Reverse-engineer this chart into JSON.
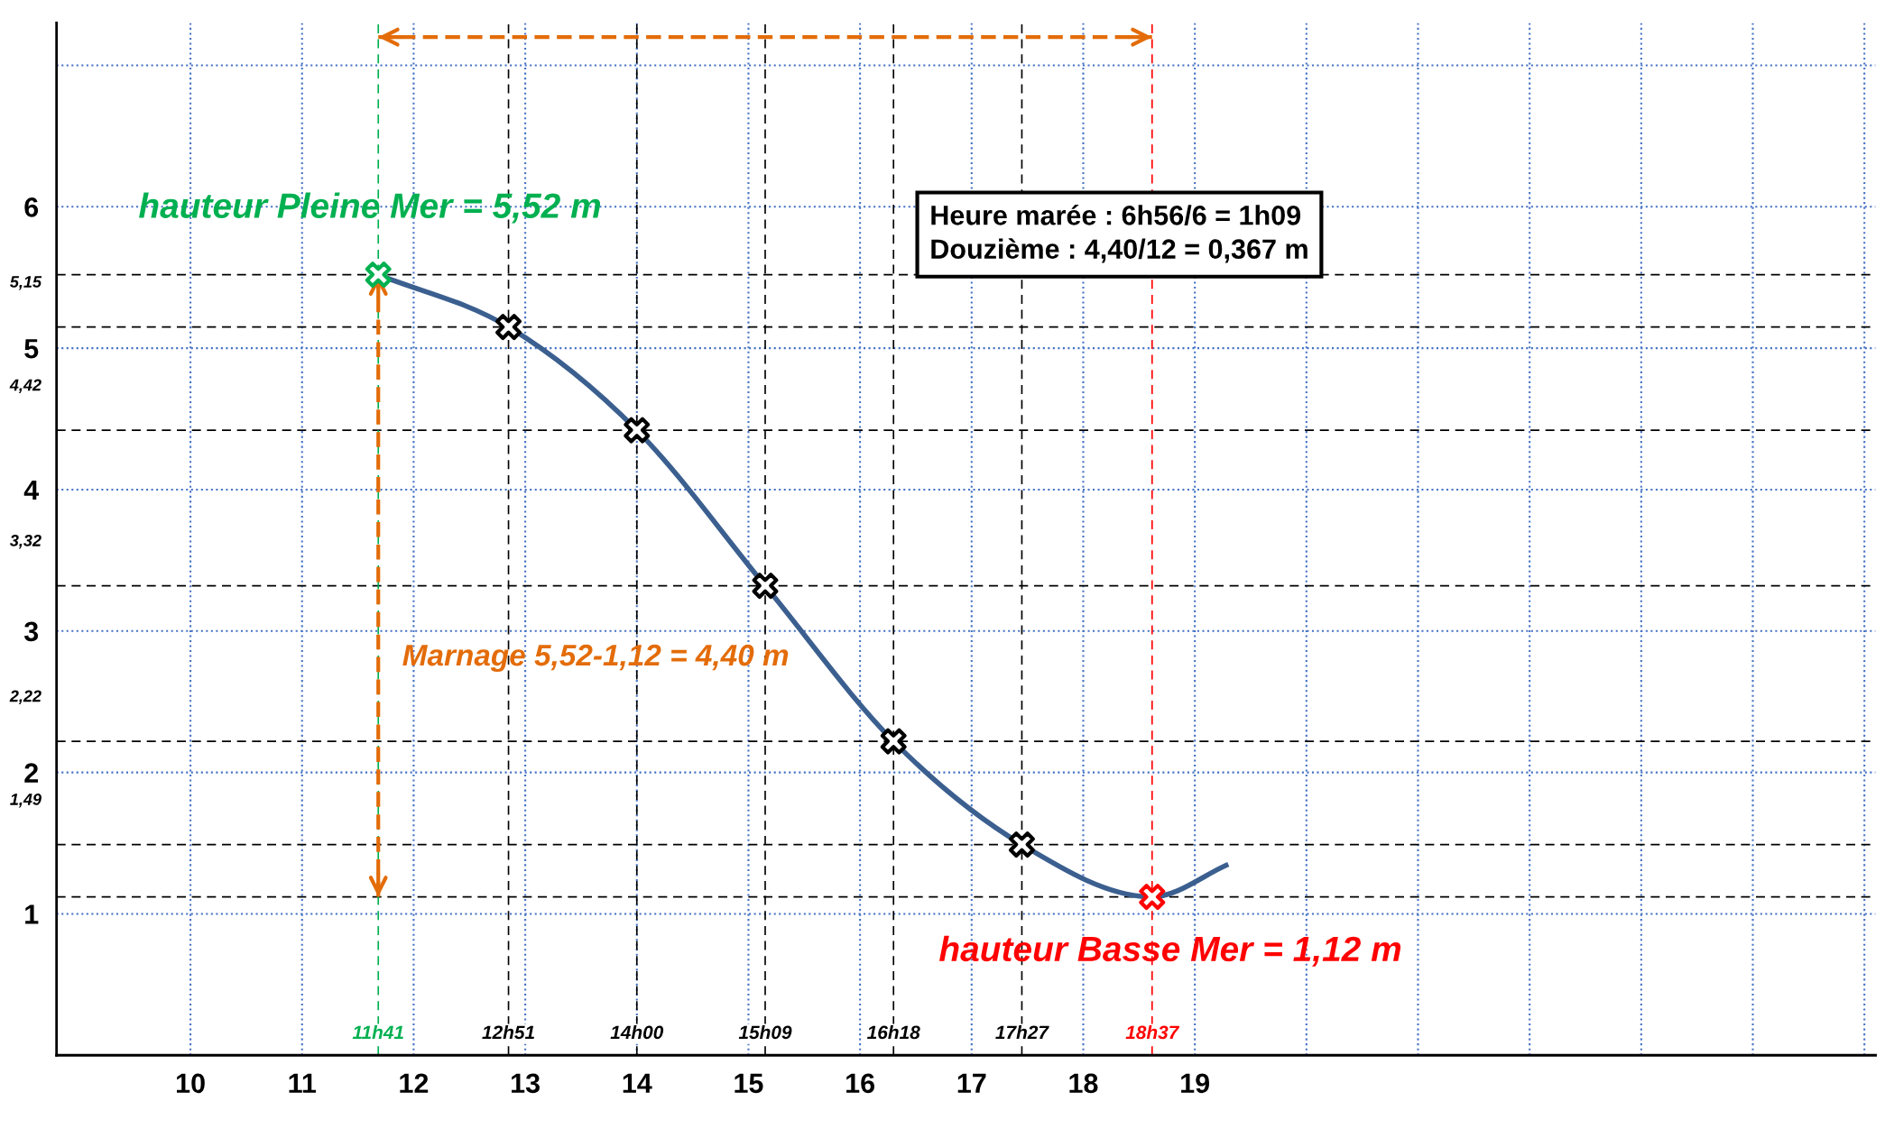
{
  "chart_data": {
    "type": "line",
    "xlim": [
      8.8,
      25.1
    ],
    "ylim": [
      0,
      7.3
    ],
    "xticks": [
      10,
      11,
      12,
      13,
      14,
      15,
      16,
      17,
      18,
      19,
      {
        "value": 20,
        "label": null
      },
      {
        "value": 21,
        "label": null
      },
      {
        "value": 22,
        "label": null
      },
      {
        "value": 23,
        "label": null
      },
      {
        "value": 24,
        "label": null
      },
      {
        "value": 25,
        "label": null
      }
    ],
    "yticks": [
      1,
      2,
      3,
      4,
      5,
      6,
      {
        "value": 7,
        "label": null
      }
    ],
    "grid": true,
    "series": [
      {
        "color": "#3b5f8f",
        "line_style": "solid",
        "marker": "none",
        "x": [
          11.683,
          12.85,
          14.0,
          15.15,
          16.3,
          17.45,
          18.617,
          19.3
        ],
        "values": [
          5.52,
          5.15,
          4.42,
          3.32,
          2.22,
          1.49,
          1.12,
          1.35
        ]
      },
      {
        "type": "scatter",
        "marker": "cross",
        "colors": [
          "#00b050",
          "#000000",
          "#000000",
          "#000000",
          "#000000",
          "#000000",
          "#ff0000"
        ],
        "x": [
          11.683,
          12.85,
          14.0,
          15.15,
          16.3,
          17.45,
          18.617
        ],
        "values": [
          5.52,
          5.15,
          4.42,
          3.32,
          2.22,
          1.49,
          1.12
        ]
      },
      {
        "type": "line",
        "color": "#e36c09",
        "line_style": "dashed",
        "marker": "none",
        "x": [
          11.683,
          11.683
        ],
        "values": [
          5.52,
          1.12
        ]
      },
      {
        "type": "line",
        "color": "#e36c09",
        "line_style": "dashed",
        "marker": "none",
        "x": [
          11.683,
          18.617
        ],
        "values": [
          7.2,
          7.2
        ]
      }
    ],
    "ref_lines": [
      {
        "axis": "y",
        "value": 5.52,
        "label": null,
        "color": "#000000",
        "line_style": "dashed"
      },
      {
        "axis": "y",
        "value": 5.15,
        "label": "5,15",
        "color": "#000000",
        "line_style": "dashed"
      },
      {
        "axis": "y",
        "value": 4.42,
        "label": "4,42",
        "color": "#000000",
        "line_style": "dashed"
      },
      {
        "axis": "y",
        "value": 3.32,
        "label": "3,32",
        "color": "#000000",
        "line_style": "dashed"
      },
      {
        "axis": "y",
        "value": 2.22,
        "label": "2,22",
        "color": "#000000",
        "line_style": "dashed"
      },
      {
        "axis": "y",
        "value": 1.49,
        "label": "1,49",
        "color": "#000000",
        "line_style": "dashed"
      },
      {
        "axis": "y",
        "value": 1.12,
        "label": null,
        "color": "#000000",
        "line_style": "dashed"
      },
      {
        "axis": "x",
        "value": 11.683,
        "label": "11h41",
        "color": "#00b050",
        "line_style": "dashed"
      },
      {
        "axis": "x",
        "value": 12.85,
        "label": "12h51",
        "color": "#000000",
        "line_style": "dashed"
      },
      {
        "axis": "x",
        "value": 14.0,
        "label": "14h00",
        "color": "#000000",
        "line_style": "dashed"
      },
      {
        "axis": "x",
        "value": 15.15,
        "label": "15h09",
        "color": "#000000",
        "line_style": "dashed"
      },
      {
        "axis": "x",
        "value": 16.3,
        "label": "16h18",
        "color": "#000000",
        "line_style": "dashed"
      },
      {
        "axis": "x",
        "value": 17.45,
        "label": "17h27",
        "color": "#000000",
        "line_style": "dashed"
      },
      {
        "axis": "x",
        "value": 18.617,
        "label": "18h37",
        "color": "#ff0000",
        "line_style": "dashed"
      }
    ],
    "annotations": [
      "hauteur Pleine Mer = 5,52 m",
      "Marnage 5,52-1,12 = 4,40 m",
      "hauteur Basse Mer = 1,12 m",
      "Heure marée : 6h56/6 = 1h09\nDouzième : 4,40/12 = 0,367 m"
    ]
  }
}
